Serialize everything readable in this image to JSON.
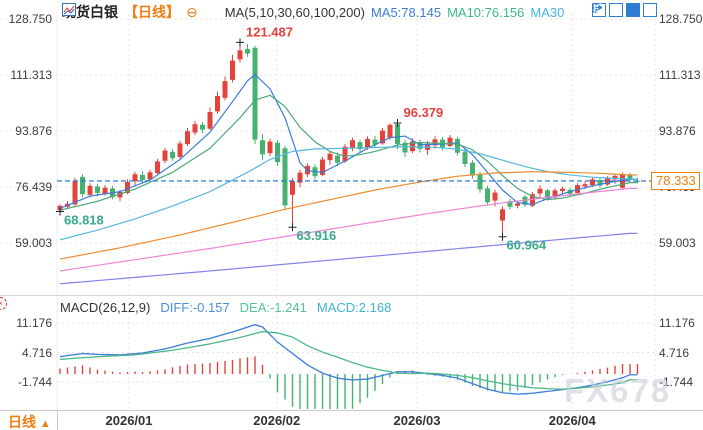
{
  "header": {
    "title": "现货白银",
    "period_tag": "【日线】",
    "ma_settings": "MA(5,10,30,60,100,200)",
    "ma5_legend": "MA5:78.145",
    "ma10_legend": "MA10:76.156",
    "ma30_legend": "MA30"
  },
  "price_axis": {
    "ticks": [
      "128.750",
      "111.313",
      "93.876",
      "76.439",
      "59.003"
    ]
  },
  "macd_axis": {
    "ticks": [
      "11.176",
      "4.716",
      "-1.744"
    ]
  },
  "time_axis": {
    "labels": [
      "2026/01",
      "2026/02",
      "2026/03",
      "2026/04"
    ]
  },
  "current_price_label": "78.333",
  "macd_header": {
    "name": "MACD(26,12,9)",
    "diff": "DIFF:-0.157",
    "dea": "DEA:-1.241",
    "macd": "MACD:2.168"
  },
  "bottom_bar": {
    "period": "日线",
    "arrow": "▲"
  },
  "watermark": "FX678",
  "colors": {
    "up": "#e2443b",
    "down": "#46b271",
    "ma5": "#3b7dd8",
    "ma10": "#4aa878",
    "ma30": "#55b8e0",
    "ma60": "#f08c2e",
    "ma100": "#ee82d8",
    "ma200": "#8382e8",
    "grid": "#e4e4e4",
    "price_line": "#1a6fce",
    "accent_orange": "#f07f13",
    "annotation_up": "#e8403c",
    "annotation_down": "#3aaa8c"
  },
  "chart_data": {
    "type": "candlestick_with_macd",
    "title": "现货白银 日线",
    "price_axis_values": [
      128.75,
      111.313,
      93.876,
      76.439,
      59.003
    ],
    "macd_axis_values": [
      11.176,
      4.716,
      -1.744
    ],
    "month_tick_indices": [
      9.2,
      28.9,
      47.6,
      68.3
    ],
    "last_price": 78.333,
    "indicator_values": {
      "diff": -0.157,
      "dea": -1.241,
      "macd": 2.168,
      "ma5": 78.145,
      "ma10": 76.156
    },
    "candles": [
      [
        69.2,
        71.0,
        68.818,
        70.6
      ],
      [
        70.3,
        72.0,
        69.6,
        71.2
      ],
      [
        71.0,
        79.2,
        70.6,
        78.2
      ],
      [
        79.6,
        80.4,
        73.2,
        74.2
      ],
      [
        74.0,
        77.6,
        73.2,
        76.8
      ],
      [
        76.6,
        77.4,
        73.6,
        74.6
      ],
      [
        74.4,
        77.0,
        73.8,
        76.2
      ],
      [
        76.0,
        76.8,
        72.6,
        73.4
      ],
      [
        73.2,
        75.6,
        72.0,
        74.9
      ],
      [
        74.6,
        78.8,
        74.2,
        78.0
      ],
      [
        78.2,
        81.2,
        77.0,
        80.4
      ],
      [
        80.2,
        81.4,
        77.8,
        78.6
      ],
      [
        78.8,
        81.8,
        78.2,
        81.0
      ],
      [
        80.8,
        85.2,
        80.2,
        84.4
      ],
      [
        84.6,
        88.6,
        83.8,
        87.8
      ],
      [
        87.4,
        88.2,
        84.6,
        85.4
      ],
      [
        85.8,
        90.8,
        85.2,
        90.0
      ],
      [
        89.8,
        94.8,
        89.2,
        93.8
      ],
      [
        93.4,
        97.0,
        92.6,
        96.0
      ],
      [
        95.8,
        96.6,
        93.2,
        94.3
      ],
      [
        94.6,
        101.2,
        94.2,
        99.8
      ],
      [
        100.0,
        106.2,
        99.2,
        104.8
      ],
      [
        104.2,
        110.8,
        103.4,
        109.4
      ],
      [
        109.8,
        117.6,
        109.0,
        115.8
      ],
      [
        116.2,
        121.487,
        115.2,
        119.0
      ],
      [
        119.4,
        121.0,
        117.0,
        118.0
      ],
      [
        119.8,
        120.4,
        89.8,
        91.2
      ],
      [
        91.0,
        93.0,
        84.8,
        86.6
      ],
      [
        87.0,
        91.5,
        86.0,
        90.6
      ],
      [
        90.2,
        91.0,
        83.0,
        84.2
      ],
      [
        88.5,
        89.3,
        69.3,
        70.7
      ],
      [
        74.0,
        79.2,
        63.916,
        78.2
      ],
      [
        77.8,
        81.8,
        76.4,
        80.9
      ],
      [
        80.4,
        83.8,
        79.6,
        83.0
      ],
      [
        82.6,
        83.4,
        78.8,
        79.8
      ],
      [
        80.2,
        85.8,
        79.8,
        85.0
      ],
      [
        84.8,
        87.6,
        83.4,
        86.8
      ],
      [
        86.2,
        87.2,
        83.0,
        84.0
      ],
      [
        84.4,
        89.8,
        84.0,
        89.0
      ],
      [
        88.6,
        91.8,
        87.6,
        91.0
      ],
      [
        90.4,
        91.2,
        87.2,
        88.2
      ],
      [
        88.6,
        92.2,
        88.0,
        91.4
      ],
      [
        91.2,
        92.4,
        88.8,
        89.6
      ],
      [
        90.0,
        94.8,
        89.6,
        94.0
      ],
      [
        91.8,
        96.2,
        91.2,
        95.8
      ],
      [
        96.0,
        96.379,
        88.2,
        89.8
      ],
      [
        90.2,
        91.2,
        85.8,
        87.2
      ],
      [
        87.6,
        91.6,
        87.0,
        90.6
      ],
      [
        90.2,
        91.2,
        87.2,
        88.3
      ],
      [
        88.0,
        90.8,
        86.4,
        89.9
      ],
      [
        89.4,
        92.2,
        88.4,
        91.3
      ],
      [
        91.2,
        92.0,
        87.8,
        88.8
      ],
      [
        89.2,
        92.6,
        88.8,
        91.8
      ],
      [
        91.4,
        92.0,
        86.2,
        87.1
      ],
      [
        87.4,
        88.2,
        82.6,
        83.6
      ],
      [
        84.0,
        84.8,
        79.0,
        80.0
      ],
      [
        80.4,
        81.2,
        74.6,
        75.7
      ],
      [
        76.0,
        76.8,
        70.6,
        71.7
      ],
      [
        72.2,
        75.6,
        70.4,
        74.7
      ],
      [
        66.0,
        70.4,
        60.964,
        69.5
      ],
      [
        72.0,
        72.8,
        69.4,
        70.3
      ],
      [
        70.6,
        72.0,
        69.8,
        71.3
      ],
      [
        73.4,
        74.0,
        70.2,
        70.9
      ],
      [
        70.6,
        74.8,
        70.2,
        74.2
      ],
      [
        74.4,
        77.0,
        72.8,
        75.9
      ],
      [
        75.4,
        75.8,
        72.2,
        73.0
      ],
      [
        73.2,
        76.0,
        72.8,
        75.4
      ],
      [
        75.2,
        76.6,
        74.4,
        75.9
      ],
      [
        75.6,
        76.2,
        73.6,
        74.3
      ],
      [
        74.6,
        77.6,
        74.2,
        77.0
      ],
      [
        76.6,
        78.2,
        75.8,
        77.3
      ],
      [
        77.0,
        79.4,
        76.4,
        78.8
      ],
      [
        78.6,
        79.2,
        76.2,
        76.9
      ],
      [
        77.2,
        79.8,
        76.8,
        79.2
      ],
      [
        78.8,
        80.4,
        77.4,
        79.9
      ],
      [
        76.2,
        81.0,
        75.6,
        80.5
      ],
      [
        80.2,
        80.8,
        77.8,
        78.6
      ],
      [
        78.4,
        79.4,
        77.6,
        78.333
      ]
    ],
    "ma_lines": [
      {
        "name": "MA5",
        "color": "#3b7dd8",
        "points": [
          [
            0,
            69.8
          ],
          [
            4,
            73.6
          ],
          [
            8,
            75.0
          ],
          [
            12,
            78.6
          ],
          [
            16,
            85.0
          ],
          [
            20,
            93.5
          ],
          [
            23,
            103.0
          ],
          [
            25,
            109.5
          ],
          [
            26,
            111.5
          ],
          [
            28,
            107.0
          ],
          [
            30,
            98.0
          ],
          [
            32,
            84.0
          ],
          [
            33,
            81.5
          ],
          [
            35,
            81.0
          ],
          [
            38,
            84.5
          ],
          [
            41,
            88.5
          ],
          [
            44,
            91.8
          ],
          [
            46,
            92.3
          ],
          [
            48,
            89.6
          ],
          [
            51,
            89.8
          ],
          [
            53,
            90.2
          ],
          [
            55,
            86.5
          ],
          [
            57,
            81.0
          ],
          [
            59,
            75.5
          ],
          [
            61,
            71.6
          ],
          [
            63,
            71.0
          ],
          [
            65,
            72.8
          ],
          [
            68,
            75.0
          ],
          [
            71,
            76.8
          ],
          [
            74,
            78.2
          ],
          [
            76,
            78.9
          ]
        ]
      },
      {
        "name": "MA10",
        "color": "#4aa878",
        "points": [
          [
            0,
            69.2
          ],
          [
            5,
            72.0
          ],
          [
            10,
            75.8
          ],
          [
            15,
            81.0
          ],
          [
            20,
            88.5
          ],
          [
            24,
            98.0
          ],
          [
            26,
            103.5
          ],
          [
            28,
            105.0
          ],
          [
            30,
            101.5
          ],
          [
            32,
            95.0
          ],
          [
            34,
            90.5
          ],
          [
            36,
            87.5
          ],
          [
            38,
            86.0
          ],
          [
            40,
            86.5
          ],
          [
            42,
            87.5
          ],
          [
            45,
            89.5
          ],
          [
            48,
            90.3
          ],
          [
            51,
            90.0
          ],
          [
            53,
            89.8
          ],
          [
            55,
            88.0
          ],
          [
            57,
            84.5
          ],
          [
            59,
            80.0
          ],
          [
            61,
            76.0
          ],
          [
            63,
            73.5
          ],
          [
            65,
            72.5
          ],
          [
            67,
            73.0
          ],
          [
            70,
            74.5
          ],
          [
            73,
            76.3
          ],
          [
            76,
            77.8
          ]
        ]
      },
      {
        "name": "MA30",
        "color": "#55b8e0",
        "points": [
          [
            0,
            60.0
          ],
          [
            5,
            63.0
          ],
          [
            10,
            66.5
          ],
          [
            15,
            70.5
          ],
          [
            20,
            75.0
          ],
          [
            25,
            81.0
          ],
          [
            28,
            85.0
          ],
          [
            31,
            87.5
          ],
          [
            34,
            88.3
          ],
          [
            40,
            88.6
          ],
          [
            46,
            89.0
          ],
          [
            50,
            88.8
          ],
          [
            53,
            88.2
          ],
          [
            56,
            86.8
          ],
          [
            59,
            84.8
          ],
          [
            62,
            82.8
          ],
          [
            65,
            81.2
          ],
          [
            68,
            80.2
          ],
          [
            71,
            79.5
          ],
          [
            74,
            79.1
          ],
          [
            76,
            78.9
          ]
        ]
      },
      {
        "name": "MA60",
        "color": "#f08c2e",
        "points": [
          [
            0,
            54.0
          ],
          [
            8,
            57.5
          ],
          [
            16,
            61.5
          ],
          [
            24,
            66.0
          ],
          [
            30,
            69.5
          ],
          [
            36,
            72.5
          ],
          [
            42,
            75.5
          ],
          [
            48,
            78.0
          ],
          [
            53,
            79.8
          ],
          [
            58,
            80.8
          ],
          [
            63,
            81.2
          ],
          [
            68,
            81.0
          ],
          [
            72,
            80.7
          ],
          [
            76,
            80.2
          ]
        ]
      },
      {
        "name": "MA100",
        "color": "#ee82d8",
        "points": [
          [
            0,
            50.3
          ],
          [
            10,
            53.8
          ],
          [
            20,
            57.3
          ],
          [
            30,
            61.0
          ],
          [
            40,
            64.8
          ],
          [
            50,
            68.5
          ],
          [
            58,
            71.2
          ],
          [
            65,
            73.2
          ],
          [
            71,
            74.8
          ],
          [
            76,
            76.0
          ]
        ]
      },
      {
        "name": "MA200",
        "color": "#8382e8",
        "points": [
          [
            0,
            46.3
          ],
          [
            10,
            48.3
          ],
          [
            20,
            50.3
          ],
          [
            30,
            52.4
          ],
          [
            40,
            54.5
          ],
          [
            50,
            56.6
          ],
          [
            60,
            58.7
          ],
          [
            70,
            60.8
          ],
          [
            76,
            62.0
          ]
        ]
      }
    ],
    "macd": {
      "diff_color": "#3b7dd8",
      "dea_color": "#4db98a",
      "hist_up_color": "#e2443b",
      "hist_down_color": "#46b271",
      "diff_points": [
        [
          0,
          3.8
        ],
        [
          3,
          4.5
        ],
        [
          5,
          4.3
        ],
        [
          8,
          4.2
        ],
        [
          11,
          4.6
        ],
        [
          14,
          5.5
        ],
        [
          17,
          6.8
        ],
        [
          20,
          7.8
        ],
        [
          23,
          9.2
        ],
        [
          26,
          10.8
        ],
        [
          27,
          10.3
        ],
        [
          29,
          7.0
        ],
        [
          31,
          4.5
        ],
        [
          33,
          2.0
        ],
        [
          35,
          0.2
        ],
        [
          37,
          -0.9
        ],
        [
          39,
          -1.3
        ],
        [
          41,
          -1.1
        ],
        [
          43,
          -0.3
        ],
        [
          45,
          0.5
        ],
        [
          47,
          0.5
        ],
        [
          49,
          0.1
        ],
        [
          51,
          -0.3
        ],
        [
          53,
          -0.9
        ],
        [
          55,
          -2.1
        ],
        [
          57,
          -3.3
        ],
        [
          59,
          -4.1
        ],
        [
          61,
          -4.4
        ],
        [
          63,
          -4.2
        ],
        [
          65,
          -3.8
        ],
        [
          67,
          -3.4
        ],
        [
          69,
          -3.0
        ],
        [
          71,
          -2.4
        ],
        [
          73,
          -1.7
        ],
        [
          75,
          -0.8
        ],
        [
          76,
          -0.157
        ]
      ],
      "dea_points": [
        [
          0,
          3.2
        ],
        [
          5,
          3.8
        ],
        [
          10,
          4.2
        ],
        [
          15,
          5.2
        ],
        [
          20,
          6.6
        ],
        [
          24,
          8.0
        ],
        [
          27,
          9.3
        ],
        [
          29,
          9.0
        ],
        [
          31,
          8.1
        ],
        [
          33,
          6.2
        ],
        [
          35,
          4.8
        ],
        [
          37,
          3.7
        ],
        [
          39,
          2.5
        ],
        [
          41,
          1.5
        ],
        [
          43,
          0.8
        ],
        [
          45,
          0.2
        ],
        [
          47,
          0.1
        ],
        [
          49,
          0.2
        ],
        [
          51,
          0.0
        ],
        [
          53,
          -0.3
        ],
        [
          55,
          -0.8
        ],
        [
          57,
          -1.5
        ],
        [
          59,
          -2.1
        ],
        [
          61,
          -2.6
        ],
        [
          63,
          -3.0
        ],
        [
          65,
          -3.2
        ],
        [
          67,
          -3.3
        ],
        [
          69,
          -3.1
        ],
        [
          71,
          -2.8
        ],
        [
          73,
          -2.4
        ],
        [
          75,
          -1.9
        ],
        [
          76,
          -1.241
        ]
      ]
    },
    "annotations": [
      {
        "text": "121.487",
        "idx": 24,
        "price": 121.487,
        "color": "#e8403c",
        "placement": "above"
      },
      {
        "text": "96.379",
        "idx": 45,
        "price": 96.379,
        "color": "#e8403c",
        "placement": "above"
      },
      {
        "text": "68.818",
        "idx": 0,
        "price": 68.818,
        "color": "#3aaa8c",
        "placement": "below"
      },
      {
        "text": "63.916",
        "idx": 31,
        "price": 63.916,
        "color": "#3aaa8c",
        "placement": "below"
      },
      {
        "text": "60.964",
        "idx": 59,
        "price": 60.964,
        "color": "#3aaa8c",
        "placement": "below"
      }
    ]
  }
}
